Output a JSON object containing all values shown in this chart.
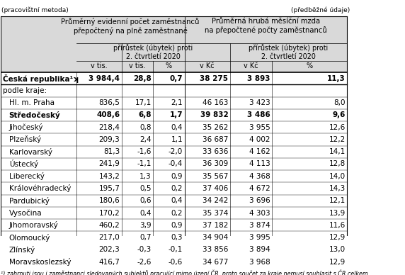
{
  "top_left_note": "(pracovištní metoda)",
  "top_right_note": "(předběžné údaje)",
  "header_left_main": "Průměrný evidenní počet zaměstnanců\npřepočtený na plně zaměstnané",
  "header_right_main": "Průměrná hrubá měsíční mzda\nna přepočtené počty zaměstnanců",
  "subheader_increase": "přírůstek (úbytek) proti\n2. čtvrtletí 2020",
  "footnote": "¹) zahrnuti jsou i zaměstnanci sledovaných subjektů pracující mimo úzení ČR, proto součet za kraje nemusí souhlasit s ČR celkem",
  "rows": [
    {
      "name": "Česká republika¹ʞ",
      "bold": true,
      "indent": 0,
      "vals": [
        "3 984,4",
        "28,8",
        "0,7",
        "38 275",
        "3 893",
        "11,3"
      ],
      "label_only": false
    },
    {
      "name": "podle kraje:",
      "bold": false,
      "indent": 0,
      "vals": [
        "",
        "",
        "",
        "",
        "",
        ""
      ],
      "label_only": true
    },
    {
      "name": "Hl. m. Praha",
      "bold": false,
      "indent": 1,
      "vals": [
        "836,5",
        "17,1",
        "2,1",
        "46 163",
        "3 423",
        "8,0"
      ],
      "label_only": false
    },
    {
      "name": "Středočeský",
      "bold": true,
      "indent": 1,
      "vals": [
        "408,6",
        "6,8",
        "1,7",
        "39 832",
        "3 486",
        "9,6"
      ],
      "label_only": false
    },
    {
      "name": "Jihočeský",
      "bold": false,
      "indent": 1,
      "vals": [
        "218,4",
        "0,8",
        "0,4",
        "35 262",
        "3 955",
        "12,6"
      ],
      "label_only": false
    },
    {
      "name": "Plzeňský",
      "bold": false,
      "indent": 1,
      "vals": [
        "209,3",
        "2,4",
        "1,1",
        "36 687",
        "4 002",
        "12,2"
      ],
      "label_only": false
    },
    {
      "name": "Karlovarský",
      "bold": false,
      "indent": 1,
      "vals": [
        "81,3",
        "-1,6",
        "-2,0",
        "33 636",
        "4 162",
        "14,1"
      ],
      "label_only": false
    },
    {
      "name": "Ústecký",
      "bold": false,
      "indent": 1,
      "vals": [
        "241,9",
        "-1,1",
        "-0,4",
        "36 309",
        "4 113",
        "12,8"
      ],
      "label_only": false
    },
    {
      "name": "Liberecký",
      "bold": false,
      "indent": 1,
      "vals": [
        "143,2",
        "1,3",
        "0,9",
        "35 567",
        "4 368",
        "14,0"
      ],
      "label_only": false
    },
    {
      "name": "Královéhradecký",
      "bold": false,
      "indent": 1,
      "vals": [
        "195,7",
        "0,5",
        "0,2",
        "37 406",
        "4 672",
        "14,3"
      ],
      "label_only": false
    },
    {
      "name": "Pardubický",
      "bold": false,
      "indent": 1,
      "vals": [
        "180,6",
        "0,6",
        "0,4",
        "34 242",
        "3 696",
        "12,1"
      ],
      "label_only": false
    },
    {
      "name": "Vysočina",
      "bold": false,
      "indent": 1,
      "vals": [
        "170,2",
        "0,4",
        "0,2",
        "35 374",
        "4 303",
        "13,9"
      ],
      "label_only": false
    },
    {
      "name": "Jihomoravský",
      "bold": false,
      "indent": 1,
      "vals": [
        "460,2",
        "3,9",
        "0,9",
        "37 182",
        "3 874",
        "11,6"
      ],
      "label_only": false
    },
    {
      "name": "Olomoucký",
      "bold": false,
      "indent": 1,
      "vals": [
        "217,0",
        "0,7",
        "0,3",
        "34 904",
        "3 995",
        "12,9"
      ],
      "label_only": false
    },
    {
      "name": "Zlínský",
      "bold": false,
      "indent": 1,
      "vals": [
        "202,3",
        "-0,3",
        "-0,1",
        "33 856",
        "3 894",
        "13,0"
      ],
      "label_only": false
    },
    {
      "name": "Moravskoslezský",
      "bold": false,
      "indent": 1,
      "vals": [
        "416,7",
        "-2,6",
        "-0,6",
        "34 677",
        "3 968",
        "12,9"
      ],
      "label_only": false
    }
  ],
  "bg_color": "#ffffff",
  "header_bg": "#d9d9d9",
  "font_size_header": 7.2,
  "font_size_data": 7.5,
  "font_size_note": 6.5
}
